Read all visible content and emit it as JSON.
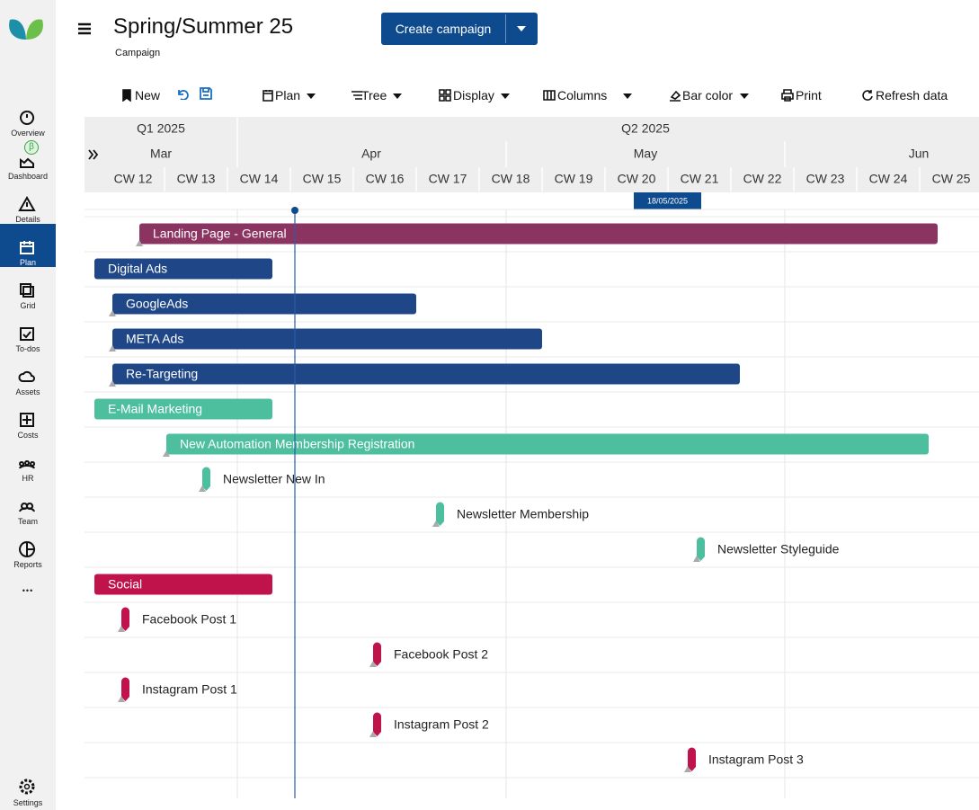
{
  "sidebar": {
    "items": [
      {
        "label": "Overview"
      },
      {
        "label": "Dashboard",
        "badge": "β"
      },
      {
        "label": "Details"
      },
      {
        "label": "Plan"
      },
      {
        "label": "Grid"
      },
      {
        "label": "To-dos"
      },
      {
        "label": "Assets"
      },
      {
        "label": "Costs"
      },
      {
        "label": "HR"
      },
      {
        "label": "Team"
      },
      {
        "label": "Reports"
      }
    ],
    "more": "•••",
    "settings": "Settings"
  },
  "header": {
    "title": "Spring/Summer 25",
    "subtitle": "Campaign",
    "button": "Create campaign"
  },
  "toolbar": [
    "New",
    "Plan",
    "Tree",
    "Display",
    "Columns",
    "Bar color",
    "Print",
    "Refresh data"
  ],
  "timeline": {
    "quarters": [
      "Q1 2025",
      "Q2 2025"
    ],
    "months": [
      "Mar",
      "Apr",
      "May",
      "Jun"
    ],
    "weeks": [
      "CW 12",
      "CW 13",
      "CW 14",
      "CW 15",
      "CW 16",
      "CW 17",
      "CW 18",
      "CW 19",
      "CW 20",
      "CW 21",
      "CW 22",
      "CW 23",
      "CW 24",
      "CW 25"
    ],
    "today": "18/05/2025"
  },
  "tasks": [
    {
      "name": "Landing Page - General"
    },
    {
      "name": "Digital Ads"
    },
    {
      "name": "GoogleAds"
    },
    {
      "name": "META Ads"
    },
    {
      "name": "Re-Targeting"
    },
    {
      "name": "E-Mail Marketing"
    },
    {
      "name": "New Automation Membership Registration"
    },
    {
      "name": "Newsletter New In"
    },
    {
      "name": "Newsletter Membership"
    },
    {
      "name": "Newsletter Styleguide"
    },
    {
      "name": "Social"
    },
    {
      "name": "Facebook Post 1"
    },
    {
      "name": "Facebook Post 2"
    },
    {
      "name": "Instagram Post 1"
    },
    {
      "name": "Instagram Post 2"
    },
    {
      "name": "Instagram Post 3"
    }
  ]
}
